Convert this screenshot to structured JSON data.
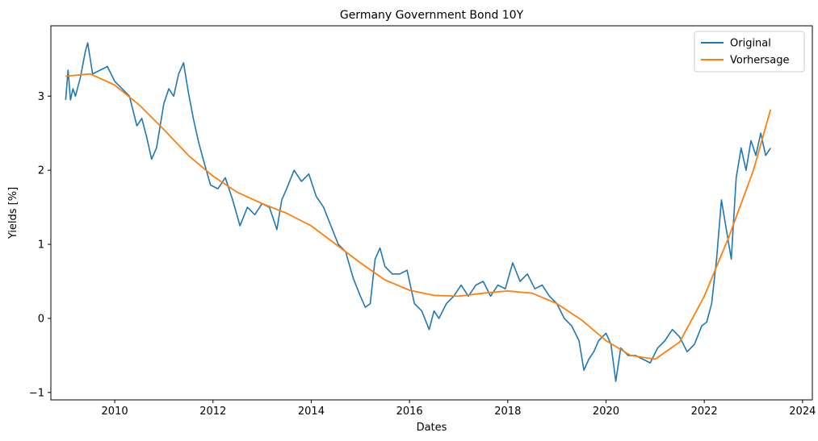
{
  "chart_data": {
    "type": "line",
    "title": "Germany Government Bond 10Y",
    "xlabel": "Dates",
    "ylabel": "Yields [%]",
    "xlim": [
      2008.7,
      2024.2
    ],
    "ylim": [
      -1.1,
      3.95
    ],
    "xticks": [
      2010,
      2012,
      2014,
      2016,
      2018,
      2020,
      2022,
      2024
    ],
    "yticks": [
      -1,
      0,
      1,
      2,
      3
    ],
    "grid": false,
    "legend_position": "top-right",
    "series": [
      {
        "name": "Original",
        "color": "#1f77b4",
        "x": [
          2009.0,
          2009.05,
          2009.1,
          2009.15,
          2009.2,
          2009.3,
          2009.4,
          2009.45,
          2009.55,
          2009.7,
          2009.85,
          2010.0,
          2010.15,
          2010.3,
          2010.45,
          2010.55,
          2010.65,
          2010.75,
          2010.85,
          2011.0,
          2011.1,
          2011.2,
          2011.3,
          2011.4,
          2011.5,
          2011.6,
          2011.7,
          2011.8,
          2011.95,
          2012.1,
          2012.25,
          2012.4,
          2012.55,
          2012.7,
          2012.85,
          2013.0,
          2013.15,
          2013.3,
          2013.4,
          2013.5,
          2013.65,
          2013.8,
          2013.95,
          2014.1,
          2014.25,
          2014.4,
          2014.55,
          2014.7,
          2014.85,
          2015.0,
          2015.1,
          2015.2,
          2015.3,
          2015.4,
          2015.5,
          2015.65,
          2015.8,
          2015.95,
          2016.1,
          2016.25,
          2016.4,
          2016.5,
          2016.6,
          2016.75,
          2016.9,
          2017.05,
          2017.2,
          2017.35,
          2017.5,
          2017.65,
          2017.8,
          2017.95,
          2018.1,
          2018.25,
          2018.4,
          2018.55,
          2018.7,
          2018.85,
          2019.0,
          2019.15,
          2019.3,
          2019.45,
          2019.55,
          2019.65,
          2019.75,
          2019.85,
          2020.0,
          2020.1,
          2020.2,
          2020.3,
          2020.45,
          2020.6,
          2020.75,
          2020.9,
          2021.05,
          2021.2,
          2021.35,
          2021.5,
          2021.65,
          2021.8,
          2021.95,
          2022.05,
          2022.15,
          2022.25,
          2022.35,
          2022.45,
          2022.55,
          2022.65,
          2022.75,
          2022.85,
          2022.95,
          2023.05,
          2023.15,
          2023.25,
          2023.35
        ],
        "y": [
          2.95,
          3.35,
          2.95,
          3.1,
          3.0,
          3.25,
          3.6,
          3.72,
          3.3,
          3.35,
          3.4,
          3.2,
          3.1,
          3.0,
          2.6,
          2.7,
          2.45,
          2.15,
          2.3,
          2.9,
          3.1,
          3.0,
          3.3,
          3.45,
          3.05,
          2.7,
          2.4,
          2.15,
          1.8,
          1.75,
          1.9,
          1.6,
          1.25,
          1.5,
          1.4,
          1.55,
          1.5,
          1.2,
          1.6,
          1.75,
          2.0,
          1.85,
          1.95,
          1.65,
          1.5,
          1.25,
          1.0,
          0.9,
          0.55,
          0.3,
          0.15,
          0.2,
          0.8,
          0.95,
          0.7,
          0.6,
          0.6,
          0.65,
          0.2,
          0.1,
          -0.15,
          0.1,
          0.0,
          0.2,
          0.3,
          0.45,
          0.3,
          0.45,
          0.5,
          0.3,
          0.45,
          0.4,
          0.75,
          0.5,
          0.6,
          0.4,
          0.45,
          0.3,
          0.2,
          0.0,
          -0.1,
          -0.3,
          -0.7,
          -0.55,
          -0.45,
          -0.3,
          -0.2,
          -0.35,
          -0.85,
          -0.4,
          -0.5,
          -0.5,
          -0.55,
          -0.6,
          -0.4,
          -0.3,
          -0.15,
          -0.25,
          -0.45,
          -0.35,
          -0.1,
          -0.05,
          0.2,
          0.8,
          1.6,
          1.2,
          0.8,
          1.9,
          2.3,
          2.0,
          2.4,
          2.2,
          2.5,
          2.2,
          2.3
        ]
      },
      {
        "name": "Vorhersage",
        "color": "#ff7f0e",
        "x": [
          2009.0,
          2009.5,
          2010.0,
          2010.5,
          2011.0,
          2011.5,
          2012.0,
          2012.5,
          2013.0,
          2013.5,
          2014.0,
          2014.5,
          2015.0,
          2015.5,
          2016.0,
          2016.5,
          2017.0,
          2017.5,
          2018.0,
          2018.5,
          2019.0,
          2019.5,
          2020.0,
          2020.5,
          2021.0,
          2021.5,
          2022.0,
          2022.5,
          2023.0,
          2023.35
        ],
        "y": [
          3.27,
          3.3,
          3.15,
          2.88,
          2.55,
          2.2,
          1.92,
          1.7,
          1.55,
          1.42,
          1.25,
          1.0,
          0.75,
          0.52,
          0.38,
          0.31,
          0.3,
          0.34,
          0.37,
          0.34,
          0.2,
          -0.02,
          -0.3,
          -0.5,
          -0.55,
          -0.32,
          0.3,
          1.1,
          2.0,
          2.82
        ]
      }
    ]
  }
}
